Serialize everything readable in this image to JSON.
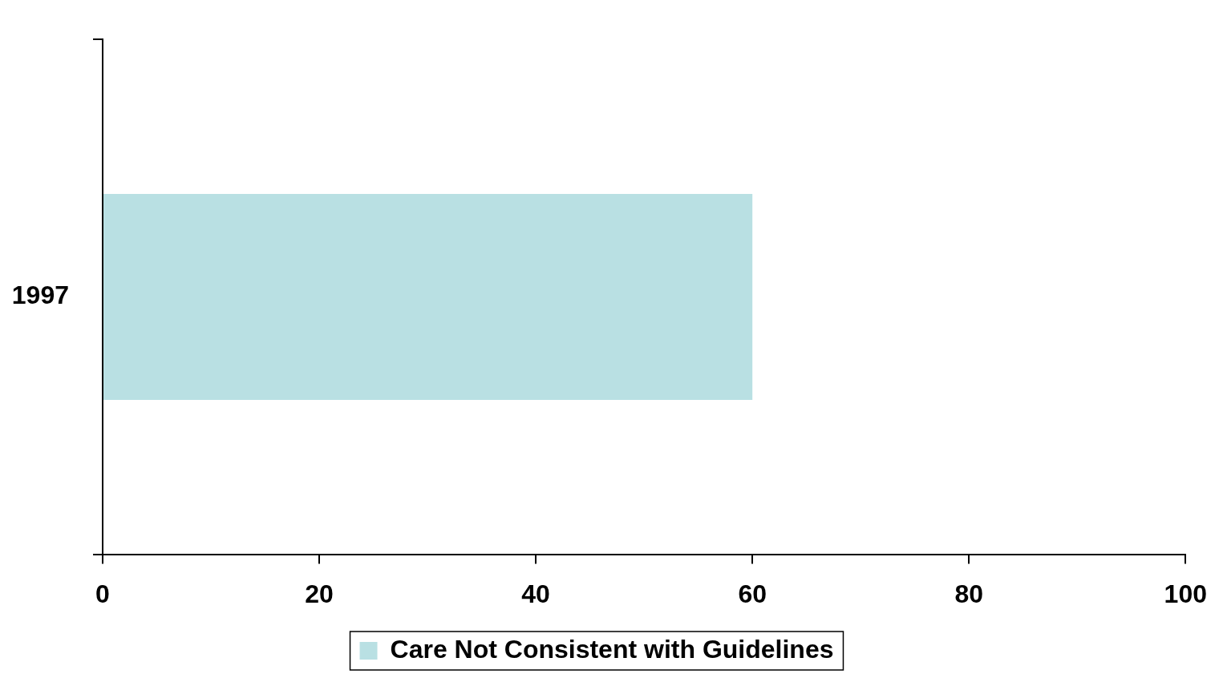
{
  "chart_data": {
    "type": "bar",
    "orientation": "horizontal",
    "categories": [
      "1997"
    ],
    "series": [
      {
        "name": "Care Not Consistent with Guidelines",
        "color": "#b9e0e3",
        "values": [
          60
        ]
      }
    ],
    "xlim": [
      0,
      100
    ],
    "xticks": [
      0,
      20,
      40,
      60,
      80,
      100
    ],
    "legend": "bottom"
  }
}
